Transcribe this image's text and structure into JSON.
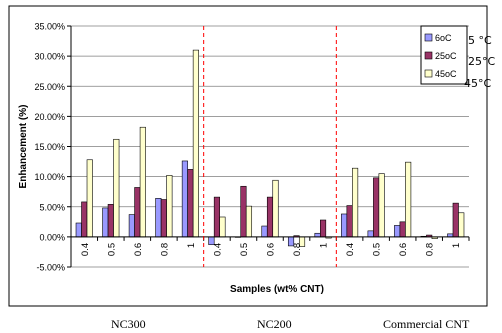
{
  "chart_data": {
    "type": "bar",
    "xlabel": "Samples (wt% CNT)",
    "ylabel": "Enhancement (%)",
    "ylim": [
      -5,
      35
    ],
    "yticks": [
      "-5.00%",
      "0.00%",
      "5.00%",
      "10.00%",
      "15.00%",
      "20.00%",
      "25.00%",
      "30.00%",
      "35.00%"
    ],
    "categories": [
      "0.4",
      "0.5",
      "0.6",
      "0.8",
      "1",
      "0.4",
      "0.5",
      "0.6",
      "0.8",
      "1",
      "0.4",
      "0.5",
      "0.6",
      "0.8",
      "1"
    ],
    "groups": [
      "NC300",
      "NC200",
      "Commercial CNT"
    ],
    "series": [
      {
        "name": "6oC",
        "color": "#9999ff",
        "values": [
          2.3,
          4.8,
          3.7,
          6.4,
          12.6,
          -1.3,
          0.0,
          1.8,
          -1.5,
          0.6,
          3.8,
          1.0,
          1.9,
          0.1,
          0.5
        ]
      },
      {
        "name": "25oC",
        "color": "#993366",
        "values": [
          5.8,
          5.4,
          8.2,
          6.2,
          11.2,
          6.6,
          8.4,
          6.6,
          0.2,
          2.8,
          5.2,
          9.8,
          2.5,
          0.3,
          5.6
        ]
      },
      {
        "name": "45oC",
        "color": "#ffffcc",
        "values": [
          12.8,
          16.2,
          18.2,
          10.2,
          31.0,
          3.3,
          5.1,
          9.4,
          -1.6,
          -0.2,
          11.4,
          10.5,
          12.4,
          -0.3,
          4.0
        ]
      }
    ],
    "legend_position": "top-right",
    "grid": true,
    "separators": "dashed red vertical lines between groups"
  },
  "stray_labels": [
    "5 °C",
    "25°C",
    "45°C"
  ]
}
